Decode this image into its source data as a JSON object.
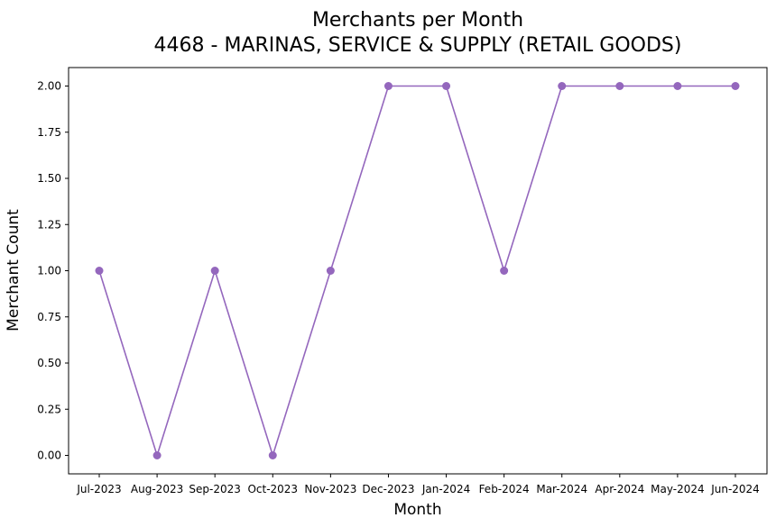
{
  "chart_data": {
    "type": "line",
    "title": "Merchants per Month",
    "subtitle": "4468 - MARINAS, SERVICE & SUPPLY (RETAIL GOODS)",
    "xlabel": "Month",
    "ylabel": "Merchant Count",
    "categories": [
      "Jul-2023",
      "Aug-2023",
      "Sep-2023",
      "Oct-2023",
      "Nov-2023",
      "Dec-2023",
      "Jan-2024",
      "Feb-2024",
      "Mar-2024",
      "Apr-2024",
      "May-2024",
      "Jun-2024"
    ],
    "series": [
      {
        "values": [
          1,
          0,
          1,
          0,
          1,
          2,
          2,
          1,
          2,
          2,
          2,
          2
        ],
        "color": "#9467bd",
        "marker": "circle"
      }
    ],
    "ylim": [
      -0.1,
      2.1
    ],
    "yticks": [
      0.0,
      0.25,
      0.5,
      0.75,
      1.0,
      1.25,
      1.5,
      1.75,
      2.0
    ],
    "ytick_labels": [
      "0.00",
      "0.25",
      "0.50",
      "0.75",
      "1.00",
      "1.25",
      "1.50",
      "1.75",
      "2.00"
    ],
    "grid": false,
    "legend": "none"
  }
}
